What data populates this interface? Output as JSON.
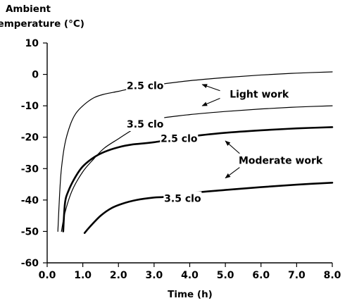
{
  "chart_data": {
    "type": "line",
    "title": "",
    "ylabel_line1": "Ambient",
    "ylabel_line2": "temperature (°C)",
    "xlabel": "Time (h)",
    "xlim": [
      0,
      8
    ],
    "ylim": [
      -60,
      10
    ],
    "xticks": [
      0,
      1,
      2,
      3,
      4,
      5,
      6,
      7,
      8
    ],
    "yticks": [
      10,
      0,
      -10,
      -20,
      -30,
      -40,
      -50,
      -60
    ],
    "xtick_labels": [
      "0.0",
      "1.0",
      "2.0",
      "3.0",
      "4.0",
      "5.0",
      "6.0",
      "7.0",
      "8.0"
    ],
    "ytick_labels": [
      "10",
      "0",
      "-10",
      "-20",
      "-30",
      "-40",
      "-50",
      "-60"
    ],
    "grid": false,
    "series": [
      {
        "name": "2.5 clo",
        "group": "Light work",
        "x": [
          0.3,
          0.35,
          0.4,
          0.5,
          0.65,
          0.8,
          1.0,
          1.3,
          1.6,
          2.0,
          2.4,
          3.0,
          4.0,
          5.0,
          6.0,
          7.0,
          8.0
        ],
        "y": [
          -50,
          -38,
          -30,
          -22,
          -16,
          -12.5,
          -10,
          -7.5,
          -6.3,
          -5.4,
          -4.4,
          -3.4,
          -2.0,
          -1.0,
          -0.2,
          0.4,
          0.8
        ]
      },
      {
        "name": "3.5 clo",
        "group": "Light work",
        "x": [
          0.4,
          0.5,
          0.7,
          1.0,
          1.3,
          1.6,
          2.0,
          2.3,
          2.6,
          3.0,
          4.0,
          5.0,
          6.0,
          7.0,
          8.0
        ],
        "y": [
          -50,
          -44,
          -37,
          -31,
          -27,
          -23.5,
          -20.5,
          -18.3,
          -16.2,
          -14.3,
          -12.8,
          -11.8,
          -11.0,
          -10.4,
          -10.0
        ]
      },
      {
        "name": "2.5 clo",
        "group": "Moderate work",
        "x": [
          0.45,
          0.5,
          0.6,
          0.8,
          1.0,
          1.3,
          1.6,
          2.0,
          2.4,
          3.0,
          4.0,
          5.0,
          6.0,
          7.0,
          8.0
        ],
        "y": [
          -50,
          -41,
          -37,
          -32.5,
          -29.3,
          -26.5,
          -24.7,
          -23.2,
          -22.3,
          -21.6,
          -19.8,
          -18.6,
          -17.8,
          -17.2,
          -16.8
        ]
      },
      {
        "name": "3.5 clo",
        "group": "Moderate work",
        "x": [
          1.05,
          1.2,
          1.5,
          1.8,
          2.1,
          2.5,
          3.0,
          3.3,
          4.0,
          5.0,
          6.0,
          7.0,
          8.0
        ],
        "y": [
          -50.5,
          -48.5,
          -45,
          -42.6,
          -41.2,
          -40.0,
          -39.2,
          -39.0,
          -37.8,
          -36.8,
          -35.9,
          -35.1,
          -34.5
        ]
      }
    ],
    "curve_labels": [
      {
        "text": "2.5 clo",
        "series": 0,
        "x": 2.75,
        "y": -3.6
      },
      {
        "text": "3.5 clo",
        "series": 1,
        "x": 2.75,
        "y": -15.8
      },
      {
        "text": "2.5 clo",
        "series": 2,
        "x": 3.7,
        "y": -20.4
      },
      {
        "text": "3.5 clo",
        "series": 3,
        "x": 3.8,
        "y": -39.5
      }
    ],
    "annotations": [
      {
        "text": "Light work",
        "x": 5.95,
        "y": -6.3,
        "arrows": [
          {
            "from": [
              4.85,
              -5.2
            ],
            "to": [
              4.35,
              -3.2
            ]
          },
          {
            "from": [
              4.85,
              -7.6
            ],
            "to": [
              4.35,
              -10.0
            ]
          }
        ]
      },
      {
        "text": "Moderate work",
        "x": 6.55,
        "y": -27.3,
        "arrows": [
          {
            "from": [
              5.4,
              -25.2
            ],
            "to": [
              5.0,
              -21.2
            ]
          },
          {
            "from": [
              5.4,
              -29.6
            ],
            "to": [
              5.0,
              -33.0
            ]
          }
        ]
      }
    ],
    "colors": {
      "line": "#000000",
      "background": "#ffffff"
    }
  }
}
